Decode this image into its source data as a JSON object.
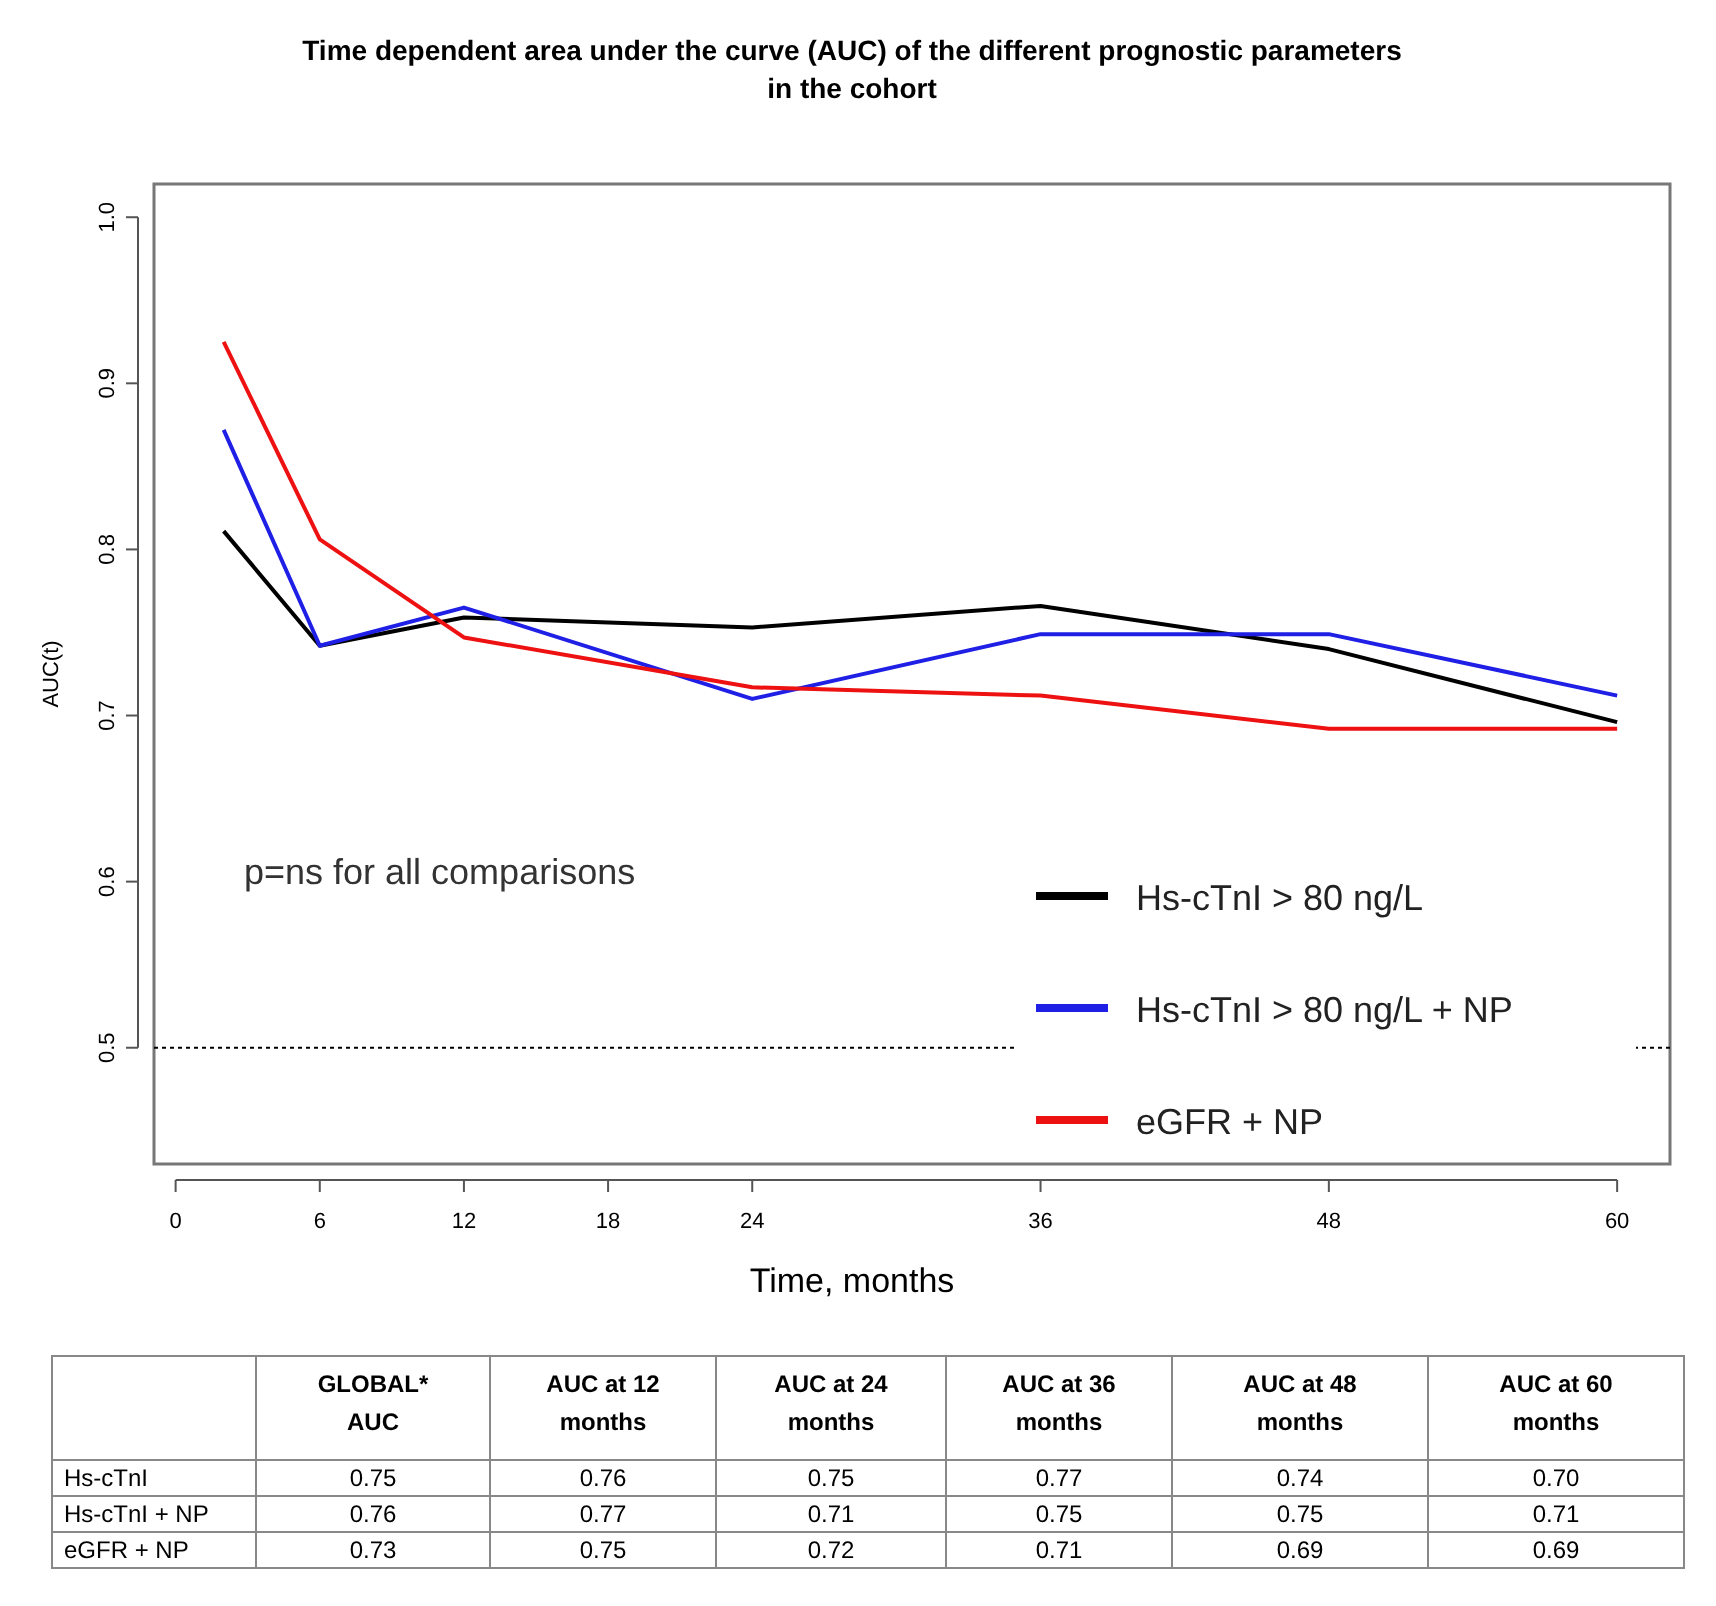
{
  "chart_data": {
    "type": "line",
    "title": "Time dependent area under the curve (AUC) of the different prognostic parameters\nin the cohort",
    "xlabel": "Time, months",
    "ylabel": "AUC(t)",
    "x": [
      2,
      6,
      12,
      24,
      36,
      48,
      60
    ],
    "series": [
      {
        "name": "Hs-cTnI  > 80 ng/L",
        "color": "#000000",
        "values": [
          0.811,
          0.742,
          0.759,
          0.753,
          0.766,
          0.74,
          0.696
        ]
      },
      {
        "name": "Hs-cTnI > 80 ng/L + NP",
        "color": "#1f1fe6",
        "values": [
          0.872,
          0.742,
          0.765,
          0.71,
          0.749,
          0.749,
          0.712
        ]
      },
      {
        "name": "eGFR + NP",
        "color": "#ee1111",
        "values": [
          0.925,
          0.806,
          0.747,
          0.717,
          0.712,
          0.692,
          0.692
        ]
      }
    ],
    "xlim": [
      -0.9,
      62.2
    ],
    "ylim": [
      0.43,
      1.02
    ],
    "xticks": [
      0,
      6,
      12,
      18,
      24,
      36,
      48,
      60
    ],
    "yticks": [
      0.5,
      0.6,
      0.7,
      0.8,
      0.9,
      {
        "value": 1,
        "label": "1.0"
      }
    ],
    "ref_lines": [
      {
        "axis": "y",
        "value": 0.5,
        "line_style": "dotted",
        "color": "#000000"
      }
    ],
    "legend": "bottom right",
    "grid": false,
    "marker": "none",
    "line_style": "solid",
    "annotations": [
      "p=ns for all comparisons",
      "GLOBAL* AUC",
      "AUC at 12 months",
      "AUC at 24 months",
      "AUC at 36 months",
      "AUC at 48 months",
      "AUC at 60 months",
      "Hs-cTnI",
      "0.75",
      "0.76",
      "0.75",
      "0.77",
      "0.74",
      "0.70",
      "Hs-cTnI + NP",
      "0.76",
      "0.77",
      "0.71",
      "0.75",
      "0.75",
      "0.71",
      "eGFR + NP",
      "0.73",
      "0.75",
      "0.72",
      "0.71",
      "0.69",
      "0.69"
    ]
  }
}
